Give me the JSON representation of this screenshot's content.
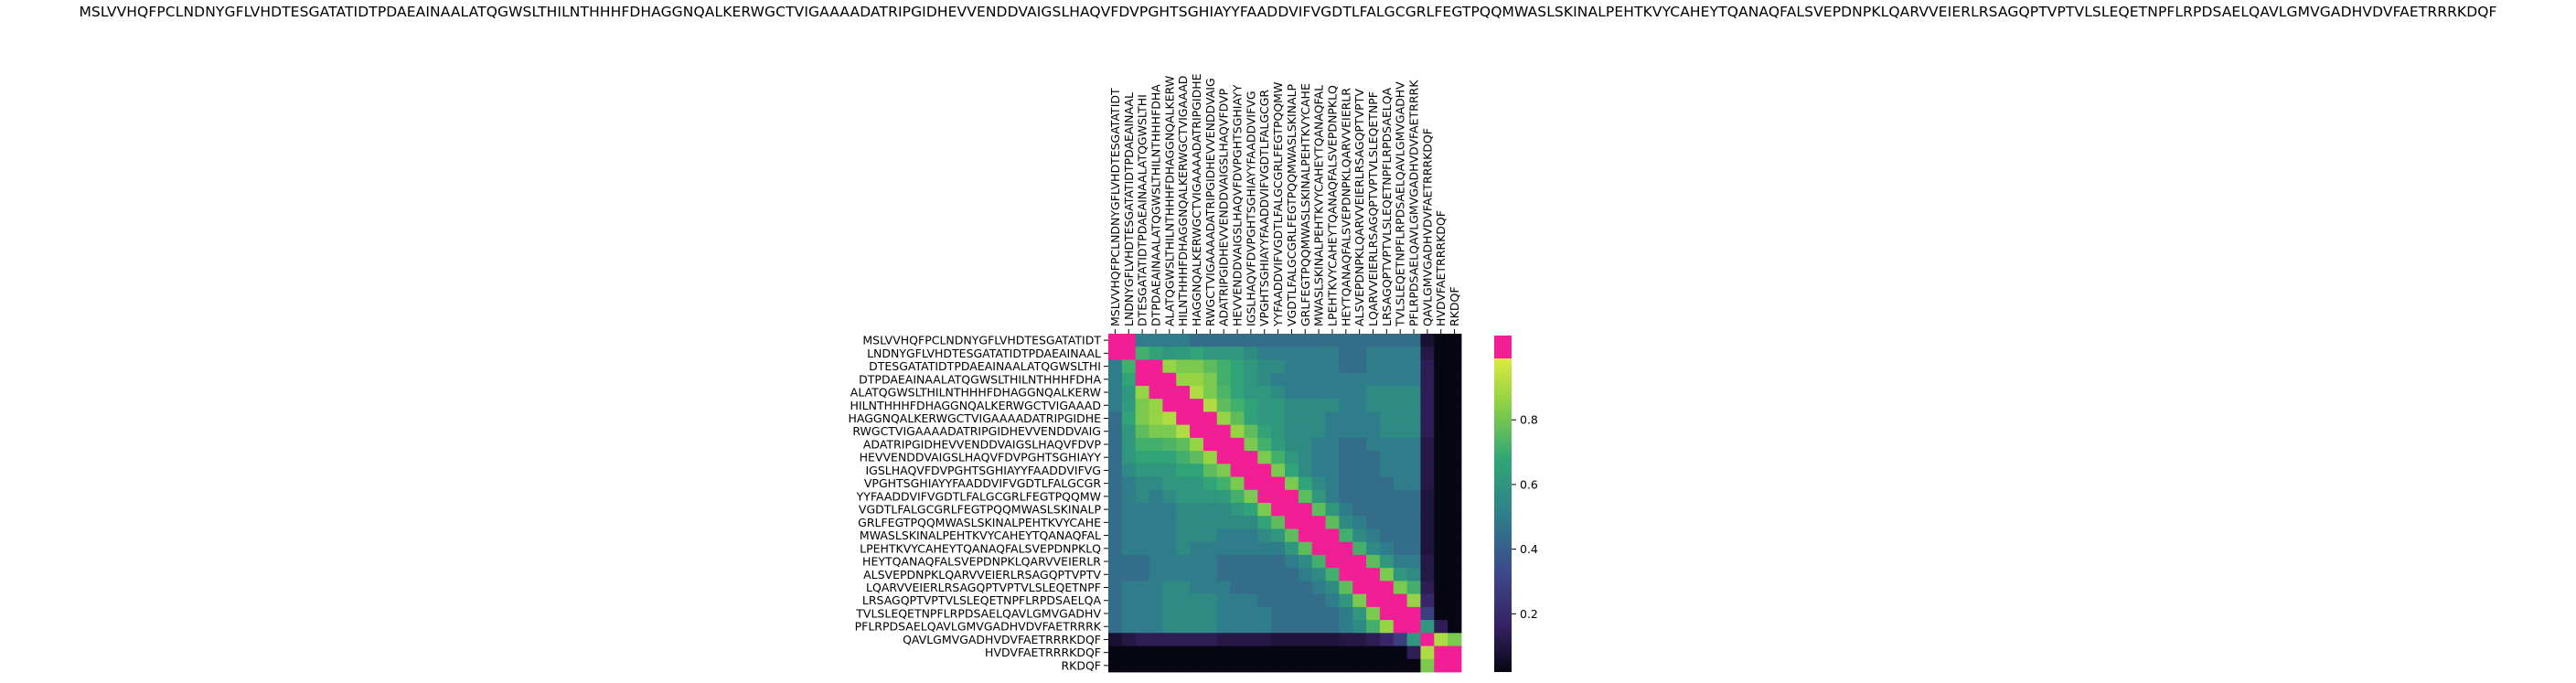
{
  "chart_data": {
    "type": "heatmap",
    "title": "MSLVVHQFPCLNDNYGFLVHDTESGATATIDTPDAEAINAALATQGWSLTHILNTHHHFDHAGGNQALKERWGCTVIGAAAADATRIPGIDHEVVENDDVAIGSLHAQVFDVPGHTSGHIAYYFAADDVIFVGDTLFALGCGRLFEGTPQQMWASLSKINALPEHTKVYCAHEYTQANAQFALSVEPDNPKLQARVVEIERLRSAGQPTVPTVLSLEQETNPFLRPDSAELQAVLGMVGADHVDVFAETRRRKDQF",
    "xlabel": "",
    "ylabel": "",
    "row_labels": [
      "MSLVVHQFPCLNDNYGFLVHDTESGATATIDT",
      "LNDNYGFLVHDTESGATATIDTPDAEAINAAL",
      "DTESGATATIDTPDAEAINAALATQGWSLTHI",
      "DTPDAEAINAALATQGWSLTHILNTHHHFDHA",
      "ALATQGWSLTHILNTHHHFDHAGGNQALKERW",
      "HILNTHHHFDHAGGNQALKERWGCTVIGAAAD",
      "HAGGNQALKERWGCTVIGAAAADATRIPGIDHE",
      "RWGCTVIGAAAADATRIPGIDHEVVENDDVAIG",
      "ADATRIPGIDHEVVENDDVAIGSLHAQVFDVP",
      "HEVVENDDVAIGSLHAQVFDVPGHTSGHIAYY",
      "IGSLHAQVFDVPGHTSGHIAYYFAADDVIFVG",
      "VPGHTSGHIAYYFAADDVIFVGDTLFALGCGR",
      "YYFAADDVIFVGDTLFALGCGRLFEGTPQQMW",
      "VGDTLFALGCGRLFEGTPQQMWASLSKINALP",
      "GRLFEGTPQQMWASLSKINALPEHTKVYCAHE",
      "MWASLSKINALPEHTKVYCAHEYTQANAQFAL",
      "LPEHTKVYCAHEYTQANAQFALSVEPDNPKLQ",
      "HEYTQANAQFALSVEPDNPKLQARVVEIERLR",
      "ALSVEPDNPKLQARVVEIERLRSAGQPTVPTV",
      "LQARVVEIERLRSAGQPTVPTVLSLEQETNPF",
      "LRSAGQPTVPTVLSLEQETNPFLRPDSAELQA",
      "TVLSLEQETNPFLRPDSAELQAVLGMVGADHV",
      "PFLRPDSAELQAVLGMVGADHVDVFAETRRRK",
      "QAVLGMVGADHVDVFAETRRRKDQF",
      "HVDVFAETRRRKDQF",
      "RKDQF"
    ],
    "col_labels": [
      "MSLVVHQFPCLNDNYGFLVHDTESGATATIDT",
      "LNDNYGFLVHDTESGATATIDTPDAEAINAAL",
      "DTESGATATIDTPDAEAINAALATQGWSLTHI",
      "DTPDAEAINAALATQGWSLTHILNTHHHFDHA",
      "ALATQGWSLTHILNTHHHFDHAGGNQALKERW",
      "HILNTHHHFDHAGGNQALKERWGCTVIGAAAD",
      "HAGGNQALKERWGCTVIGAAAADATRIPGIDHE",
      "RWGCTVIGAAAADATRIPGIDHEVVENDDVAIG",
      "ADATRIPGIDHEVVENDDVAIGSLHAQVFDVP",
      "HEVVENDDVAIGSLHAQVFDVPGHTSGHIAYY",
      "IGSLHAQVFDVPGHTSGHIAYYFAADDVIFVG",
      "VPGHTSGHIAYYFAADDVIFVGDTLFALGCGR",
      "YYFAADDVIFVGDTLFALGCGRLFEGTPQQMW",
      "VGDTLFALGCGRLFEGTPQQMWASLSKINALP",
      "GRLFEGTPQQMWASLSKINALPEHTKVYCAHE",
      "MWASLSKINALPEHTKVYCAHEYTQANAQFAL",
      "LPEHTKVYCAHEYTQANAQFALSVEPDNPKLQ",
      "HEYTQANAQFALSVEPDNPKLQARVVEIERLR",
      "ALSVEPDNPKLQARVVEIERLRSAGQPTVPTV",
      "LQARVVEIERLRSAGQPTVPTVLSLEQETNPF",
      "LRSAGQPTVPTVLSLEQETNPFLRPDSAELQA",
      "TVLSLEQETNPFLRPDSAELQAVLGMVGADHV",
      "PFLRPDSAELQAVLGMVGADHVDVFAETRRRK",
      "QAVLGMVGADHVDVFAETRRRKDQF",
      "HVDVFAETRRRKDQF",
      "RKDQF"
    ],
    "colorbar": {
      "ticks": [
        0.2,
        0.4,
        0.6,
        0.8
      ],
      "tick_labels": [
        "0.2",
        "0.4",
        "0.6",
        "0.8"
      ],
      "range": [
        0.02,
        0.99
      ],
      "saturated_color": "#f11e95",
      "colormap": [
        "#070713",
        "#372264",
        "#3c4a8a",
        "#2f7f8a",
        "#30a776",
        "#8bd046",
        "#dcea3d"
      ]
    },
    "values": [
      [
        1.0,
        1.0,
        0.5,
        0.5,
        0.5,
        0.5,
        0.45,
        0.45,
        0.45,
        0.45,
        0.45,
        0.45,
        0.45,
        0.45,
        0.45,
        0.45,
        0.45,
        0.45,
        0.45,
        0.45,
        0.45,
        0.45,
        0.45,
        0.08,
        0.02,
        0.02
      ],
      [
        1.0,
        1.0,
        0.7,
        0.65,
        0.6,
        0.62,
        0.65,
        0.6,
        0.6,
        0.6,
        0.55,
        0.5,
        0.5,
        0.5,
        0.5,
        0.5,
        0.5,
        0.45,
        0.45,
        0.5,
        0.5,
        0.5,
        0.5,
        0.12,
        0.02,
        0.02
      ],
      [
        0.5,
        0.7,
        1.0,
        1.0,
        0.85,
        0.8,
        0.8,
        0.75,
        0.7,
        0.65,
        0.6,
        0.55,
        0.55,
        0.5,
        0.5,
        0.5,
        0.5,
        0.45,
        0.45,
        0.5,
        0.5,
        0.5,
        0.5,
        0.15,
        0.02,
        0.02
      ],
      [
        0.5,
        0.65,
        1.0,
        1.0,
        1.0,
        0.85,
        0.85,
        0.8,
        0.7,
        0.65,
        0.6,
        0.55,
        0.5,
        0.5,
        0.5,
        0.5,
        0.5,
        0.5,
        0.5,
        0.5,
        0.5,
        0.5,
        0.5,
        0.15,
        0.02,
        0.02
      ],
      [
        0.5,
        0.6,
        0.85,
        1.0,
        1.0,
        1.0,
        0.9,
        0.8,
        0.72,
        0.65,
        0.6,
        0.6,
        0.55,
        0.5,
        0.5,
        0.5,
        0.5,
        0.5,
        0.5,
        0.55,
        0.55,
        0.55,
        0.55,
        0.15,
        0.02,
        0.02
      ],
      [
        0.5,
        0.62,
        0.8,
        0.85,
        1.0,
        1.0,
        1.0,
        0.9,
        0.75,
        0.7,
        0.65,
        0.6,
        0.6,
        0.55,
        0.55,
        0.55,
        0.55,
        0.5,
        0.5,
        0.55,
        0.55,
        0.55,
        0.55,
        0.15,
        0.02,
        0.02
      ],
      [
        0.45,
        0.65,
        0.8,
        0.85,
        0.9,
        1.0,
        1.0,
        1.0,
        0.85,
        0.75,
        0.65,
        0.6,
        0.6,
        0.55,
        0.55,
        0.55,
        0.5,
        0.5,
        0.5,
        0.5,
        0.55,
        0.55,
        0.55,
        0.15,
        0.02,
        0.02
      ],
      [
        0.45,
        0.6,
        0.75,
        0.8,
        0.8,
        0.9,
        1.0,
        1.0,
        1.0,
        0.85,
        0.75,
        0.65,
        0.6,
        0.55,
        0.55,
        0.55,
        0.5,
        0.5,
        0.5,
        0.5,
        0.55,
        0.55,
        0.55,
        0.15,
        0.02,
        0.02
      ],
      [
        0.45,
        0.6,
        0.7,
        0.7,
        0.72,
        0.75,
        0.85,
        1.0,
        1.0,
        1.0,
        0.8,
        0.7,
        0.62,
        0.55,
        0.55,
        0.5,
        0.5,
        0.45,
        0.45,
        0.5,
        0.5,
        0.5,
        0.5,
        0.12,
        0.02,
        0.02
      ],
      [
        0.45,
        0.6,
        0.65,
        0.65,
        0.65,
        0.7,
        0.75,
        0.85,
        1.0,
        1.0,
        1.0,
        0.8,
        0.7,
        0.6,
        0.55,
        0.5,
        0.5,
        0.45,
        0.45,
        0.45,
        0.5,
        0.5,
        0.5,
        0.12,
        0.02,
        0.02
      ],
      [
        0.45,
        0.55,
        0.6,
        0.6,
        0.6,
        0.65,
        0.65,
        0.75,
        0.8,
        1.0,
        1.0,
        1.0,
        0.8,
        0.65,
        0.55,
        0.5,
        0.5,
        0.45,
        0.45,
        0.45,
        0.5,
        0.5,
        0.5,
        0.12,
        0.02,
        0.02
      ],
      [
        0.45,
        0.5,
        0.55,
        0.55,
        0.6,
        0.6,
        0.6,
        0.65,
        0.7,
        0.8,
        1.0,
        1.0,
        1.0,
        0.8,
        0.65,
        0.55,
        0.5,
        0.45,
        0.45,
        0.45,
        0.45,
        0.5,
        0.5,
        0.12,
        0.02,
        0.02
      ],
      [
        0.45,
        0.5,
        0.55,
        0.5,
        0.55,
        0.6,
        0.6,
        0.6,
        0.62,
        0.7,
        0.8,
        1.0,
        1.0,
        1.0,
        0.75,
        0.6,
        0.5,
        0.45,
        0.45,
        0.45,
        0.45,
        0.45,
        0.45,
        0.1,
        0.02,
        0.02
      ],
      [
        0.45,
        0.5,
        0.5,
        0.5,
        0.5,
        0.55,
        0.55,
        0.55,
        0.55,
        0.6,
        0.65,
        0.8,
        1.0,
        1.0,
        1.0,
        0.75,
        0.6,
        0.5,
        0.45,
        0.45,
        0.45,
        0.45,
        0.45,
        0.1,
        0.02,
        0.02
      ],
      [
        0.45,
        0.5,
        0.5,
        0.5,
        0.5,
        0.55,
        0.55,
        0.55,
        0.55,
        0.55,
        0.55,
        0.65,
        0.75,
        1.0,
        1.0,
        1.0,
        0.75,
        0.55,
        0.5,
        0.45,
        0.45,
        0.45,
        0.45,
        0.1,
        0.02,
        0.02
      ],
      [
        0.45,
        0.5,
        0.5,
        0.5,
        0.5,
        0.55,
        0.55,
        0.55,
        0.5,
        0.5,
        0.5,
        0.55,
        0.6,
        0.75,
        1.0,
        1.0,
        1.0,
        0.7,
        0.55,
        0.5,
        0.45,
        0.45,
        0.45,
        0.1,
        0.02,
        0.02
      ],
      [
        0.45,
        0.5,
        0.5,
        0.5,
        0.5,
        0.55,
        0.5,
        0.5,
        0.5,
        0.5,
        0.5,
        0.5,
        0.5,
        0.6,
        0.75,
        1.0,
        1.0,
        1.0,
        0.7,
        0.55,
        0.5,
        0.45,
        0.45,
        0.1,
        0.02,
        0.02
      ],
      [
        0.45,
        0.45,
        0.45,
        0.5,
        0.5,
        0.5,
        0.5,
        0.5,
        0.45,
        0.45,
        0.45,
        0.45,
        0.45,
        0.5,
        0.55,
        0.7,
        1.0,
        1.0,
        1.0,
        0.75,
        0.6,
        0.5,
        0.5,
        0.12,
        0.02,
        0.02
      ],
      [
        0.45,
        0.45,
        0.45,
        0.5,
        0.5,
        0.5,
        0.5,
        0.5,
        0.45,
        0.45,
        0.45,
        0.45,
        0.45,
        0.45,
        0.5,
        0.55,
        0.7,
        1.0,
        1.0,
        1.0,
        0.8,
        0.6,
        0.55,
        0.12,
        0.02,
        0.02
      ],
      [
        0.45,
        0.5,
        0.5,
        0.5,
        0.55,
        0.55,
        0.5,
        0.5,
        0.5,
        0.45,
        0.45,
        0.45,
        0.45,
        0.45,
        0.45,
        0.5,
        0.55,
        0.75,
        1.0,
        1.0,
        1.0,
        0.8,
        0.7,
        0.15,
        0.02,
        0.02
      ],
      [
        0.45,
        0.5,
        0.5,
        0.5,
        0.55,
        0.55,
        0.55,
        0.55,
        0.5,
        0.5,
        0.5,
        0.45,
        0.45,
        0.45,
        0.45,
        0.45,
        0.5,
        0.6,
        0.8,
        1.0,
        1.0,
        1.0,
        0.85,
        0.2,
        0.02,
        0.02
      ],
      [
        0.45,
        0.5,
        0.5,
        0.5,
        0.55,
        0.55,
        0.55,
        0.55,
        0.5,
        0.5,
        0.5,
        0.5,
        0.45,
        0.45,
        0.45,
        0.45,
        0.45,
        0.5,
        0.6,
        0.8,
        1.0,
        1.0,
        1.0,
        0.3,
        0.02,
        0.02
      ],
      [
        0.45,
        0.5,
        0.5,
        0.5,
        0.55,
        0.55,
        0.55,
        0.55,
        0.5,
        0.5,
        0.5,
        0.5,
        0.45,
        0.45,
        0.45,
        0.45,
        0.45,
        0.5,
        0.55,
        0.7,
        0.85,
        1.0,
        1.0,
        0.6,
        0.15,
        0.02
      ],
      [
        0.08,
        0.12,
        0.15,
        0.15,
        0.15,
        0.15,
        0.15,
        0.15,
        0.12,
        0.12,
        0.12,
        0.12,
        0.1,
        0.1,
        0.1,
        0.1,
        0.1,
        0.12,
        0.12,
        0.15,
        0.2,
        0.3,
        0.6,
        1.0,
        0.9,
        0.8
      ],
      [
        0.02,
        0.02,
        0.02,
        0.02,
        0.02,
        0.02,
        0.02,
        0.02,
        0.02,
        0.02,
        0.02,
        0.02,
        0.02,
        0.02,
        0.02,
        0.02,
        0.02,
        0.02,
        0.02,
        0.02,
        0.02,
        0.02,
        0.15,
        0.9,
        1.0,
        1.0
      ],
      [
        0.02,
        0.02,
        0.02,
        0.02,
        0.02,
        0.02,
        0.02,
        0.02,
        0.02,
        0.02,
        0.02,
        0.02,
        0.02,
        0.02,
        0.02,
        0.02,
        0.02,
        0.02,
        0.02,
        0.02,
        0.02,
        0.02,
        0.02,
        0.8,
        1.0,
        1.0
      ]
    ]
  }
}
